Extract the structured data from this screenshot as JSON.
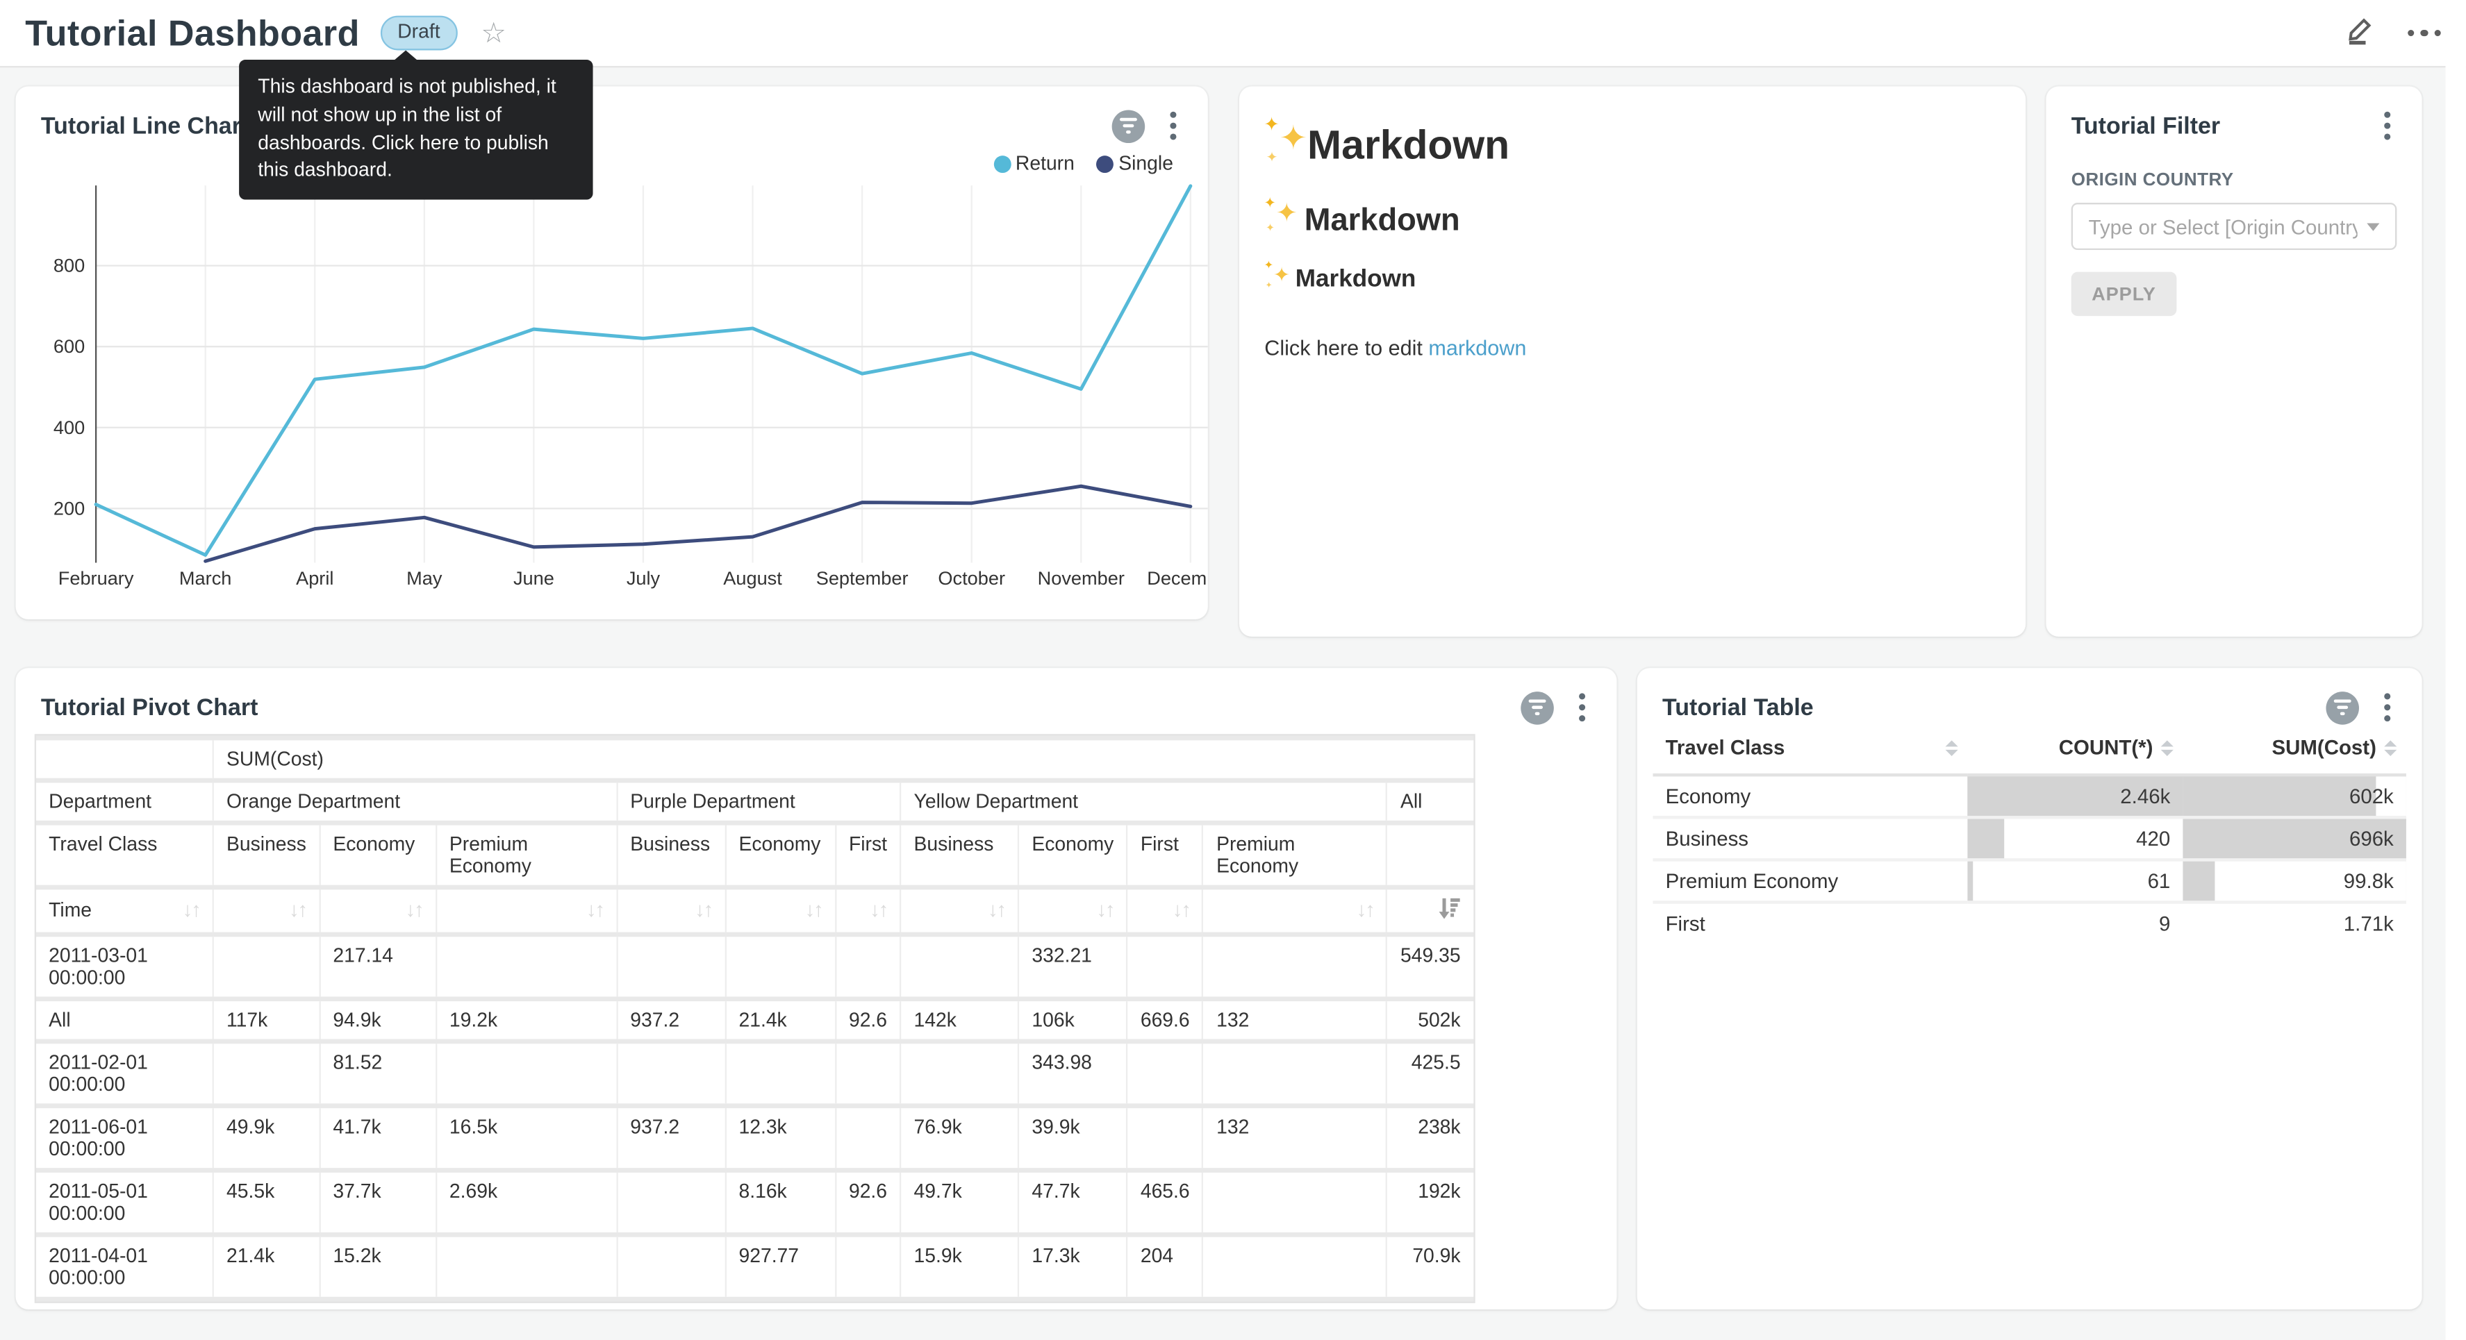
{
  "header": {
    "title": "Tutorial Dashboard",
    "status_badge": "Draft",
    "tooltip": "This dashboard is not published, it will not show up in the list of dashboards. Click here to publish this dashboard."
  },
  "line_chart_card": {
    "title": "Tutorial Line Chart"
  },
  "chart_data": {
    "type": "line",
    "x": [
      "February",
      "March",
      "April",
      "May",
      "June",
      "July",
      "August",
      "September",
      "October",
      "November",
      "December"
    ],
    "series": [
      {
        "name": "Return",
        "color": "#55B9D8",
        "values": [
          210,
          85,
          519,
          549,
          643,
          620,
          645,
          533,
          584,
          495,
          997
        ]
      },
      {
        "name": "Single",
        "color": "#3D4C7D",
        "values": [
          null,
          70,
          150,
          178,
          105,
          112,
          130,
          215,
          213,
          255,
          205
        ]
      }
    ],
    "yticks": [
      200,
      400,
      600,
      800
    ],
    "ylim": [
      66,
      998
    ],
    "grid": true,
    "legend_position": "top-right"
  },
  "markdown_card": {
    "headings": [
      "Markdown",
      "Markdown",
      "Markdown"
    ],
    "paragraph_prefix": "Click here to edit ",
    "link_text": "markdown",
    "sparkles_icon": "✦"
  },
  "filter_card": {
    "title": "Tutorial Filter",
    "field_label": "ORIGIN COUNTRY",
    "select_placeholder": "Type or Select [Origin Country]",
    "apply_label": "APPLY"
  },
  "pivot_card": {
    "title": "Tutorial Pivot Chart",
    "metric_label": "SUM(Cost)",
    "row_header": "Department",
    "class_header": "Travel Class",
    "time_header": "Time",
    "groups": [
      {
        "label": "Orange Department",
        "cols": [
          "Business",
          "Economy",
          "Premium Economy"
        ]
      },
      {
        "label": "Purple Department",
        "cols": [
          "Business",
          "Economy",
          "First"
        ]
      },
      {
        "label": "Yellow Department",
        "cols": [
          "Business",
          "Economy",
          "First",
          "Premium Economy"
        ]
      },
      {
        "label": "All",
        "cols": [
          ""
        ]
      }
    ],
    "active_sort_col": 10,
    "rows": [
      {
        "label": "2011-03-01 00:00:00",
        "values": [
          "",
          "217.14",
          "",
          "",
          "",
          "",
          "",
          "332.21",
          "",
          "",
          "549.35"
        ]
      },
      {
        "label": "All",
        "values": [
          "117k",
          "94.9k",
          "19.2k",
          "937.2",
          "21.4k",
          "92.6",
          "142k",
          "106k",
          "669.6",
          "132",
          "502k"
        ]
      },
      {
        "label": "2011-02-01 00:00:00",
        "values": [
          "",
          "81.52",
          "",
          "",
          "",
          "",
          "",
          "343.98",
          "",
          "",
          "425.5"
        ]
      },
      {
        "label": "2011-06-01 00:00:00",
        "values": [
          "49.9k",
          "41.7k",
          "16.5k",
          "937.2",
          "12.3k",
          "",
          "76.9k",
          "39.9k",
          "",
          "132",
          "238k"
        ]
      },
      {
        "label": "2011-05-01 00:00:00",
        "values": [
          "45.5k",
          "37.7k",
          "2.69k",
          "",
          "8.16k",
          "92.6",
          "49.7k",
          "47.7k",
          "465.6",
          "",
          "192k"
        ]
      },
      {
        "label": "2011-04-01 00:00:00",
        "values": [
          "21.4k",
          "15.2k",
          "",
          "",
          "927.77",
          "",
          "15.9k",
          "17.3k",
          "204",
          "",
          "70.9k"
        ]
      }
    ]
  },
  "table_card": {
    "title": "Tutorial Table",
    "columns": [
      "Travel Class",
      "COUNT(*)",
      "SUM(Cost)"
    ],
    "rows": [
      [
        "Economy",
        "2.46k",
        "602k"
      ],
      [
        "Business",
        "420",
        "696k"
      ],
      [
        "Premium Economy",
        "61",
        "99.8k"
      ],
      [
        "First",
        "9",
        "1.71k"
      ]
    ],
    "bar_color": "#D3D3D3"
  }
}
